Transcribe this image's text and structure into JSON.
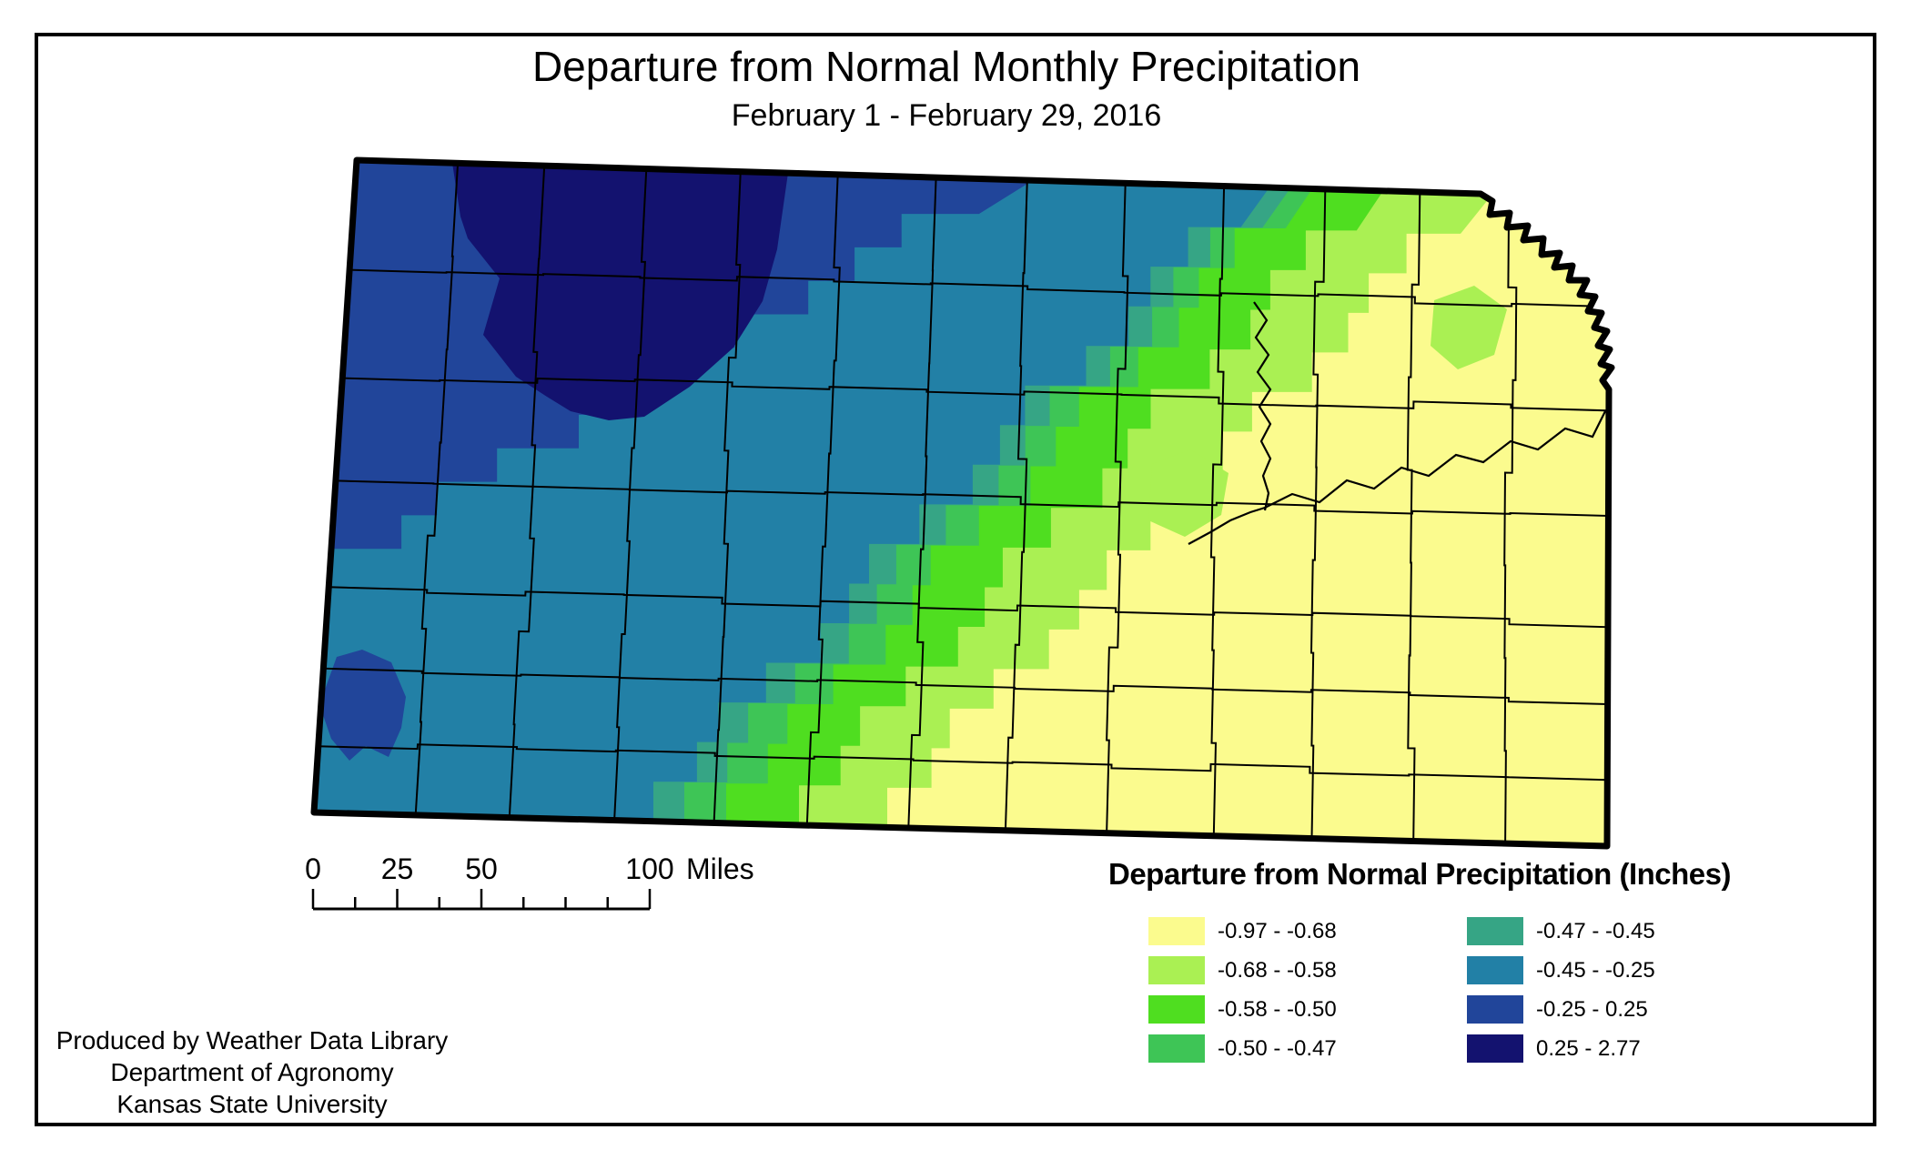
{
  "header": {
    "title": "Departure from Normal Monthly Precipitation",
    "subtitle": "February 1 - February 29, 2016"
  },
  "map": {
    "state": "Kansas",
    "outline_color": "#000000",
    "county_line_color": "#000000"
  },
  "scale_bar": {
    "major_labels": [
      {
        "text": "0",
        "miles": 0
      },
      {
        "text": "25",
        "miles": 25
      },
      {
        "text": "50",
        "miles": 50
      },
      {
        "text": "100",
        "miles": 100
      }
    ],
    "unit_label": "Miles"
  },
  "legend": {
    "title": "Departure from Normal Precipitation (Inches)",
    "classes": [
      {
        "label": "-0.97 - -0.68",
        "color": "#FBFB8E"
      },
      {
        "label": "-0.68 - -0.58",
        "color": "#AAF053"
      },
      {
        "label": "-0.58 - -0.50",
        "color": "#4FDE20"
      },
      {
        "label": "-0.50 - -0.47",
        "color": "#3EC556"
      },
      {
        "label": "-0.47 - -0.45",
        "color": "#36A585"
      },
      {
        "label": "-0.45 - -0.25",
        "color": "#2280A6"
      },
      {
        "label": "-0.25 - 0.25",
        "color": "#21459A"
      },
      {
        "label": "0.25 - 2.77",
        "color": "#13126F"
      }
    ]
  },
  "credits": {
    "lines": [
      "Produced by Weather Data Library",
      "Department of Agronomy",
      "Kansas State University"
    ]
  }
}
